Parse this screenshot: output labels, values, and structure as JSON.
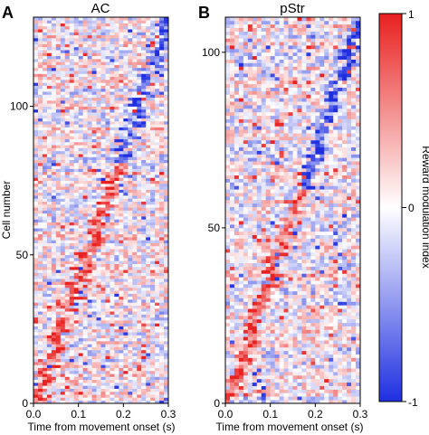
{
  "panels": [
    {
      "letter": "A",
      "title": "AC",
      "xlabel": "Time from movement onset (s)",
      "ylabel": "Cell number",
      "xticks": [
        "0.0",
        "0.1",
        "0.2",
        "0.3"
      ],
      "yticks": [
        "0",
        "50",
        "100"
      ]
    },
    {
      "letter": "B",
      "title": "pStr",
      "xlabel": "Time from movement onset (s)",
      "ylabel": "",
      "xticks": [
        "0.0",
        "0.1",
        "0.2",
        "0.3"
      ],
      "yticks": [
        "0",
        "50",
        "100"
      ]
    }
  ],
  "colorbar": {
    "label": "Reward modulation index",
    "ticks": [
      "1",
      "0",
      "-1"
    ],
    "colors": {
      "high": "#e8201f",
      "mid": "#ffffff",
      "low": "#1f2fe0"
    }
  },
  "chart_data": [
    {
      "type": "heatmap",
      "title": "AC",
      "xlabel": "Time from movement onset (s)",
      "ylabel": "Cell number",
      "x_range": [
        0.0,
        0.3
      ],
      "y_range": [
        0,
        130
      ],
      "n_cells": 130,
      "n_time_bins": 30,
      "x_ticks": [
        0.0,
        0.1,
        0.2,
        0.3
      ],
      "y_ticks": [
        0,
        50,
        100
      ],
      "value_range": [
        -1,
        1
      ],
      "colormap": "blue-white-red",
      "seed": 7,
      "pattern": "cells sorted by peak time; diagonal band rising from bottom-left to top-right; positive (red) modulation dominant in lower rows, negative (blue) diagonal in upper rows"
    },
    {
      "type": "heatmap",
      "title": "pStr",
      "xlabel": "Time from movement onset (s)",
      "ylabel": "",
      "x_range": [
        0.0,
        0.3
      ],
      "y_range": [
        0,
        110
      ],
      "n_cells": 110,
      "n_time_bins": 30,
      "x_ticks": [
        0.0,
        0.1,
        0.2,
        0.3
      ],
      "y_ticks": [
        0,
        50,
        100
      ],
      "value_range": [
        -1,
        1
      ],
      "colormap": "blue-white-red",
      "seed": 19,
      "pattern": "cells sorted by peak time; red diagonal band in lower rows, blue diagonal band in upper rows"
    }
  ]
}
